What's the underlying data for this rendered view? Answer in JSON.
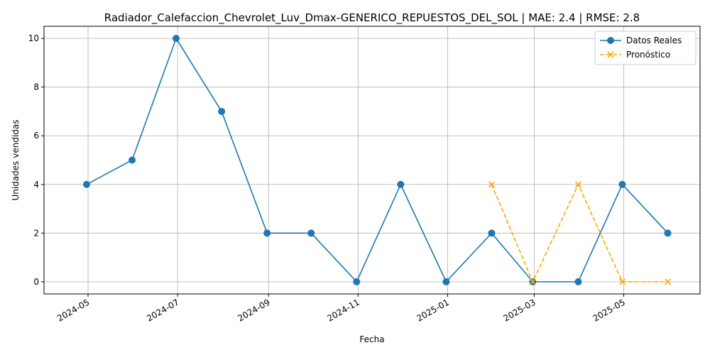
{
  "chart_data": {
    "type": "line",
    "title": "Radiador_Calefaccion_Chevrolet_Luv_Dmax-GENERICO_REPUESTOS_DEL_SOL | MAE: 2.4 | RMSE: 2.8",
    "xlabel": "Fecha",
    "ylabel": "Unidades vendidas",
    "ylim": [
      -0.5,
      10.5
    ],
    "xlim": [
      "2024-04-01",
      "2025-06-22"
    ],
    "grid": true,
    "legend_position": "top-right",
    "x_ticks": [
      "2024-05",
      "2024-07",
      "2024-09",
      "2024-11",
      "2025-01",
      "2025-03",
      "2025-05"
    ],
    "y_ticks": [
      0,
      2,
      4,
      6,
      8,
      10
    ],
    "series": [
      {
        "name": "Datos Reales",
        "color": "#1f77b4",
        "marker": "circle",
        "line_style": "solid",
        "x": [
          "2024-04-30",
          "2024-05-31",
          "2024-06-30",
          "2024-07-31",
          "2024-08-31",
          "2024-09-30",
          "2024-10-31",
          "2024-11-30",
          "2024-12-31",
          "2025-01-31",
          "2025-02-28",
          "2025-03-31",
          "2025-04-30",
          "2025-05-31"
        ],
        "values": [
          4,
          5,
          10,
          7,
          2,
          2,
          0,
          4,
          0,
          2,
          0,
          0,
          4,
          2
        ]
      },
      {
        "name": "Pronóstico",
        "color": "#ffa500",
        "marker": "x",
        "line_style": "dashed",
        "x": [
          "2025-01-31",
          "2025-02-28",
          "2025-03-31",
          "2025-04-30",
          "2025-05-31"
        ],
        "values": [
          4,
          0,
          4,
          0,
          0
        ]
      }
    ]
  }
}
